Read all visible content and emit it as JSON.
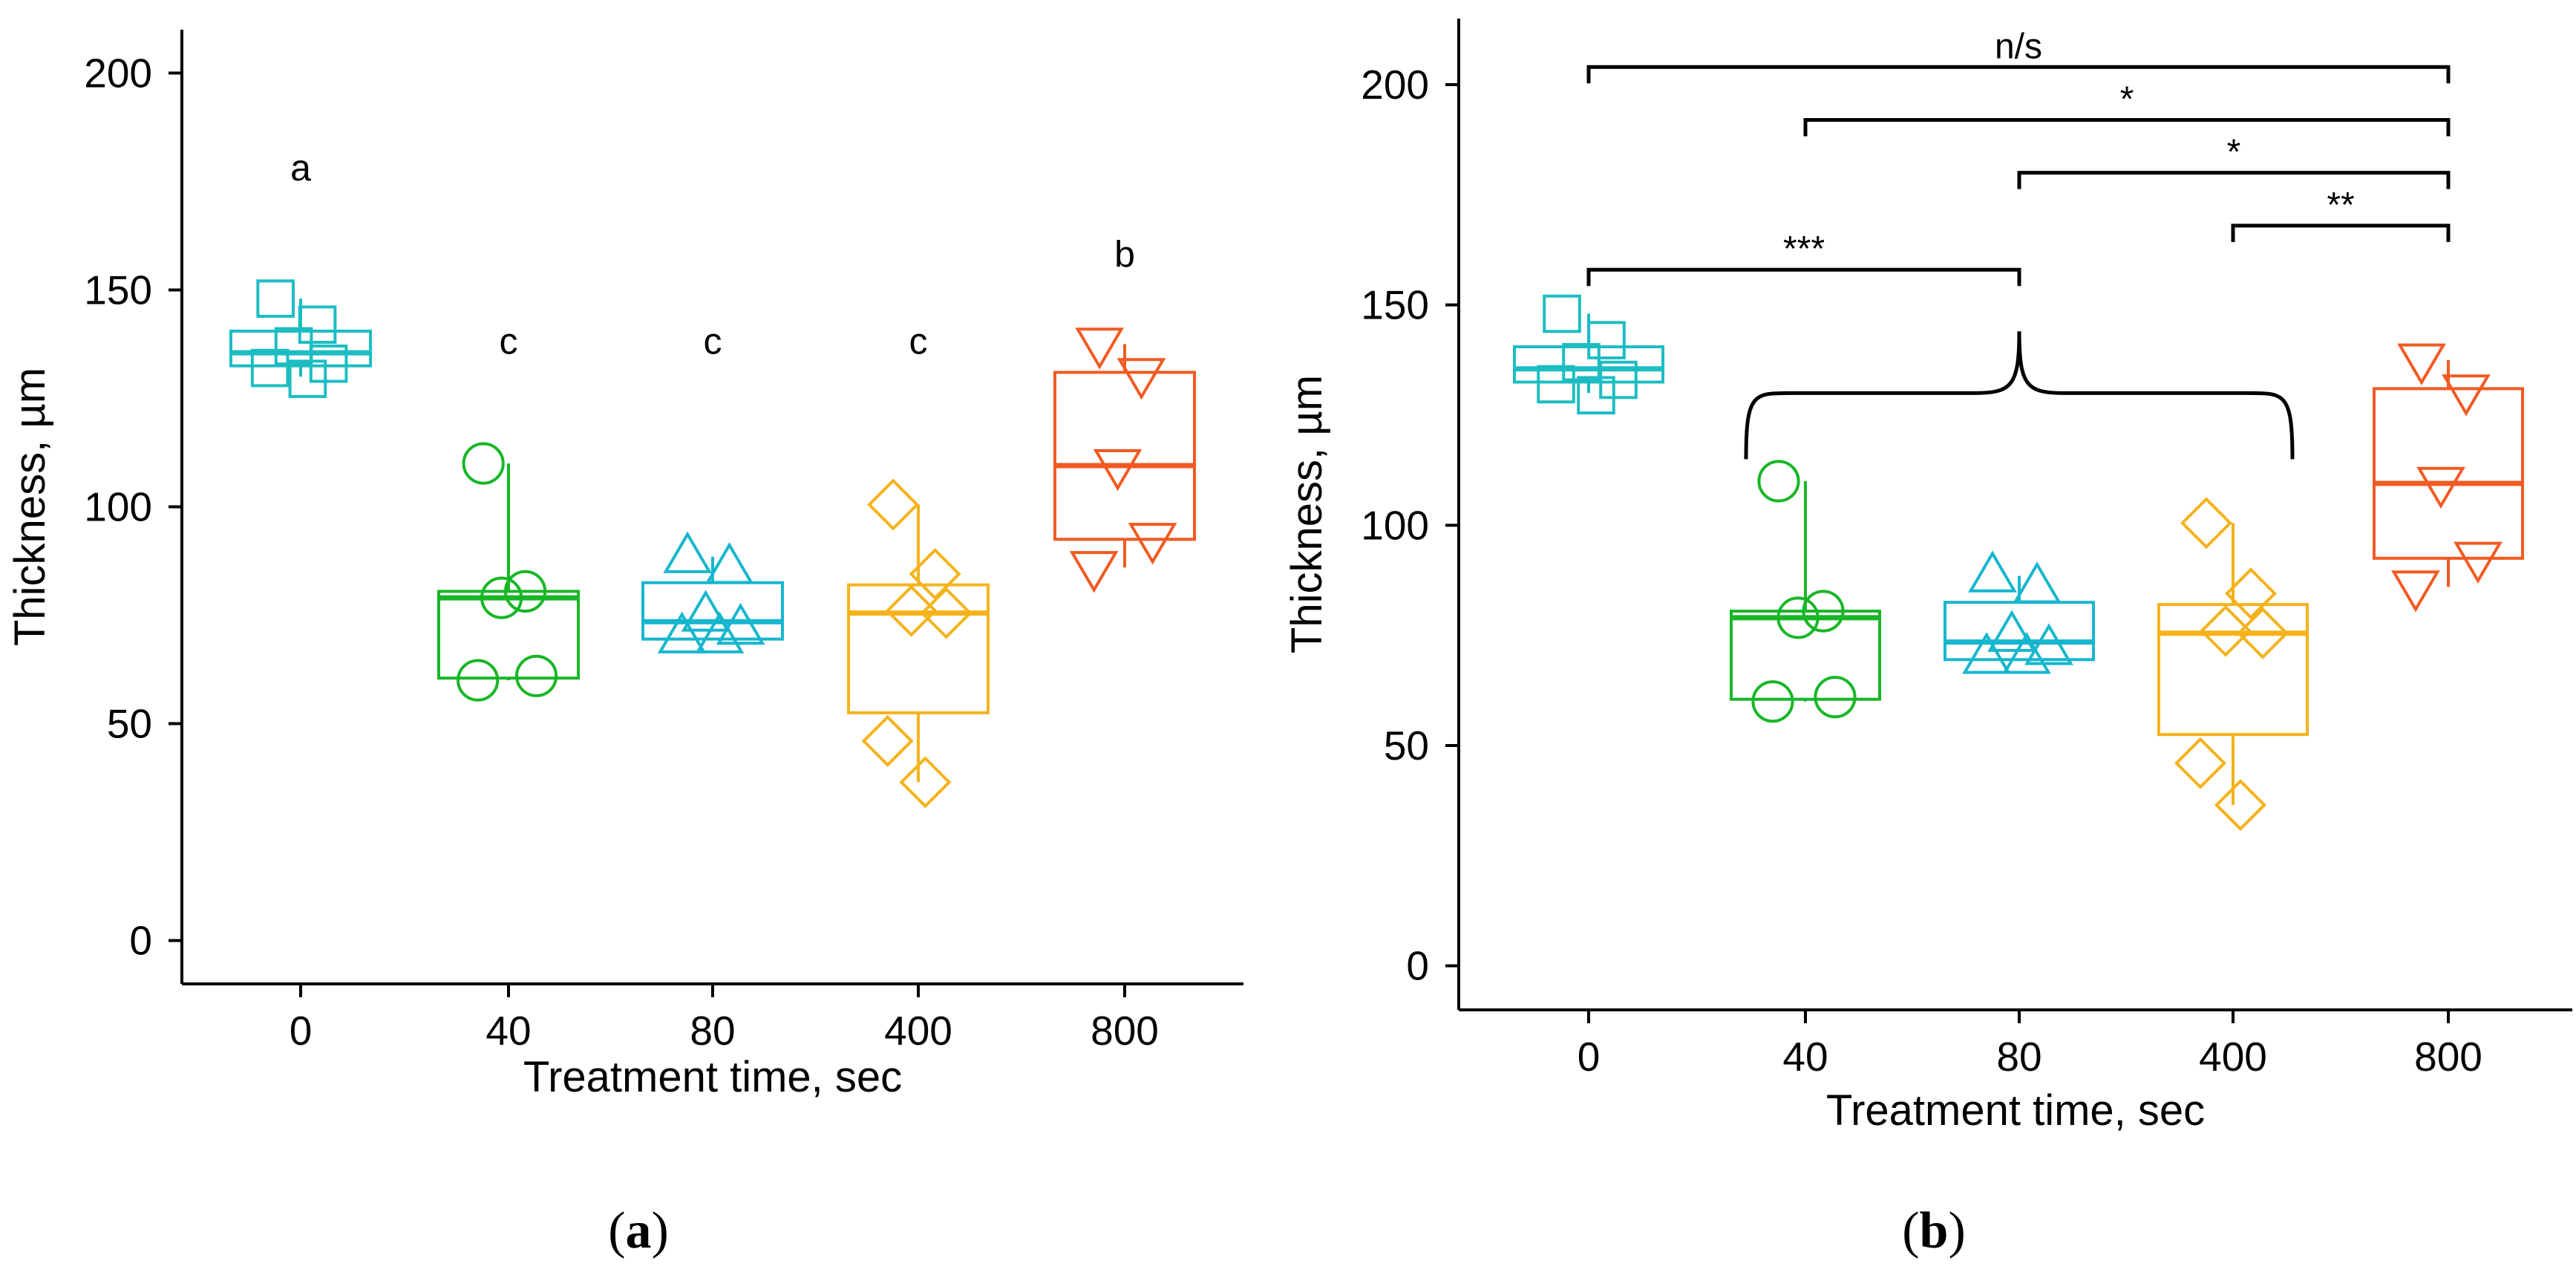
{
  "chart_data": [
    {
      "id": "a",
      "type": "box",
      "caption_letter": "a",
      "xlabel": "Treatment time, sec",
      "ylabel": "Thickness, µm",
      "ylim": [
        -10,
        210
      ],
      "yticks": [
        0,
        50,
        100,
        150,
        200
      ],
      "categories": [
        "0",
        "40",
        "80",
        "400",
        "800"
      ],
      "groups": [
        {
          "category": "0",
          "color": "#1CBDC2",
          "marker": "square",
          "q1": 132.5,
          "median": 135.5,
          "q3": 140.5,
          "whisker_low": 130,
          "whisker_high": 148,
          "points": [
            148,
            142,
            137,
            133,
            132,
            129.5
          ],
          "letter": "a",
          "letter_y": 178
        },
        {
          "category": "40",
          "color": "#18B627",
          "marker": "circle",
          "q1": 60.5,
          "median": 79,
          "q3": 80.5,
          "whisker_low": 60,
          "whisker_high": 110,
          "points": [
            110,
            80.5,
            79,
            61,
            60
          ],
          "letter": "c",
          "letter_y": 138
        },
        {
          "category": "80",
          "color": "#17B6CE",
          "marker": "triangle-up",
          "q1": 69.5,
          "median": 73.5,
          "q3": 82.5,
          "whisker_low": 69.5,
          "whisker_high": 88.5,
          "points": [
            88.5,
            86,
            75,
            72,
            70,
            70
          ],
          "letter": "c",
          "letter_y": 138
        },
        {
          "category": "400",
          "color": "#F5B21B",
          "marker": "diamond",
          "q1": 52.5,
          "median": 75.5,
          "q3": 82,
          "whisker_low": 36.5,
          "whisker_high": 100.5,
          "points": [
            100.5,
            84.5,
            76,
            75.5,
            46,
            36.5
          ],
          "letter": "c",
          "letter_y": 138
        },
        {
          "category": "800",
          "color": "#F15A22",
          "marker": "triangle-down",
          "q1": 92.5,
          "median": 109.5,
          "q3": 131,
          "whisker_low": 86,
          "whisker_high": 137.5,
          "points": [
            137.5,
            130.5,
            109.5,
            92.5,
            86
          ],
          "letter": "b",
          "letter_y": 158
        }
      ]
    },
    {
      "id": "b",
      "type": "box",
      "caption_letter": "b",
      "xlabel": "Treatment time, sec",
      "ylabel": "Thickness, µm",
      "ylim": [
        -10,
        215
      ],
      "yticks": [
        0,
        50,
        100,
        150,
        200
      ],
      "categories": [
        "0",
        "40",
        "80",
        "400",
        "800"
      ],
      "groups": [
        {
          "category": "0",
          "color": "#1CBDC2",
          "marker": "square",
          "q1": 132.5,
          "median": 135.5,
          "q3": 140.5,
          "whisker_low": 130,
          "whisker_high": 148,
          "points": [
            148,
            142,
            137,
            133,
            132,
            129.5
          ]
        },
        {
          "category": "40",
          "color": "#18B627",
          "marker": "circle",
          "q1": 60.5,
          "median": 79,
          "q3": 80.5,
          "whisker_low": 60,
          "whisker_high": 110,
          "points": [
            110,
            80.5,
            79,
            61,
            60
          ]
        },
        {
          "category": "80",
          "color": "#17B6CE",
          "marker": "triangle-up",
          "q1": 69.5,
          "median": 73.5,
          "q3": 82.5,
          "whisker_low": 69.5,
          "whisker_high": 88.5,
          "points": [
            88.5,
            86,
            75,
            72,
            70,
            70
          ]
        },
        {
          "category": "400",
          "color": "#F5B21B",
          "marker": "diamond",
          "q1": 52.5,
          "median": 75.5,
          "q3": 82,
          "whisker_low": 36.5,
          "whisker_high": 100.5,
          "points": [
            100.5,
            84.5,
            76,
            75.5,
            46,
            36.5
          ]
        },
        {
          "category": "800",
          "color": "#F15A22",
          "marker": "triangle-down",
          "q1": 92.5,
          "median": 109.5,
          "q3": 131,
          "whisker_low": 86,
          "whisker_high": 137.5,
          "points": [
            137.5,
            130.5,
            109.5,
            92.5,
            86
          ]
        }
      ],
      "comparisons": [
        {
          "from": "0",
          "to": "800",
          "y": 204,
          "label": "n/s"
        },
        {
          "from": "40",
          "to": "800",
          "y": 192,
          "label": "*"
        },
        {
          "from": "80",
          "to": "800",
          "y": 180,
          "label": "*"
        },
        {
          "from": "400",
          "to": "800",
          "y": 168,
          "label": "**"
        },
        {
          "from": "0",
          "to": "80",
          "y": 158,
          "label": "***"
        }
      ],
      "group_brace": {
        "from_category": "40",
        "to_category": "400",
        "y_low": 115,
        "y_high": 130,
        "y_tip": 144
      }
    }
  ]
}
